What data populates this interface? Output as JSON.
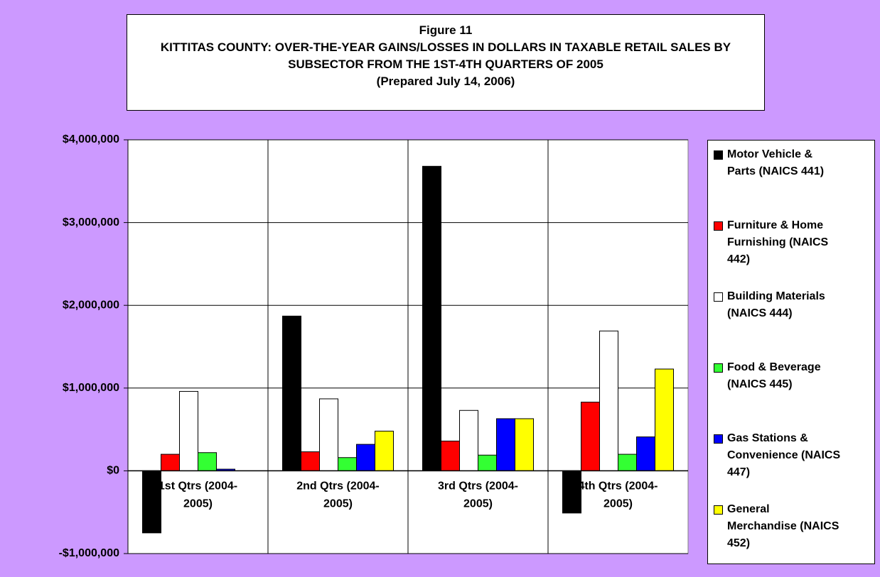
{
  "chart_data": {
    "type": "bar",
    "title": "Figure 11",
    "subtitle": "KITTITAS COUNTY: OVER-THE-YEAR GAINS/LOSSES IN DOLLARS IN TAXABLE RETAIL SALES BY SUBSECTOR FROM THE 1ST-4TH QUARTERS OF 2005",
    "note": "(Prepared July 14, 2006)",
    "categories": [
      "1st Qtrs (2004-2005)",
      "2nd Qtrs (2004-2005)",
      "3rd Qtrs (2004-2005)",
      "4th Qtrs (2004-2005)"
    ],
    "series": [
      {
        "name": "Motor Vehicle & Parts (NAICS 441)",
        "color": "#000000",
        "values": [
          -750000,
          1870000,
          3680000,
          -510000
        ]
      },
      {
        "name": "Furniture & Home Furnishing (NAICS 442)",
        "color": "#ff0000",
        "values": [
          200000,
          230000,
          360000,
          830000
        ]
      },
      {
        "name": "Building Materials (NAICS 444)",
        "color": "#ffffff",
        "values": [
          960000,
          870000,
          730000,
          1690000
        ]
      },
      {
        "name": "Food & Beverage (NAICS 445)",
        "color": "#33ff33",
        "values": [
          220000,
          160000,
          190000,
          200000
        ]
      },
      {
        "name": "Gas Stations & Convenience (NAICS 447)",
        "color": "#0000ff",
        "values": [
          20000,
          320000,
          630000,
          410000
        ]
      },
      {
        "name": "General Merchandise (NAICS 452)",
        "color": "#ffff00",
        "values": [
          0,
          480000,
          630000,
          1230000
        ]
      }
    ],
    "ylim": [
      -1000000,
      4000000
    ],
    "yticks": [
      {
        "value": -1000000,
        "label": "-$1,000,000"
      },
      {
        "value": 0,
        "label": "$0"
      },
      {
        "value": 1000000,
        "label": "$1,000,000"
      },
      {
        "value": 2000000,
        "label": "$2,000,000"
      },
      {
        "value": 3000000,
        "label": "$3,000,000"
      },
      {
        "value": 4000000,
        "label": "$4,000,000"
      }
    ],
    "grid": true,
    "legend": "right"
  }
}
